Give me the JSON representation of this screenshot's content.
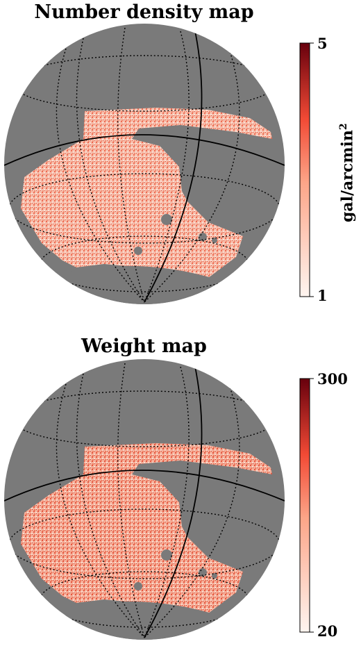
{
  "panels": [
    {
      "title": "Number density map",
      "colorbar": {
        "min_label": "5",
        "max_label": "1",
        "unit": "gal/arcmin",
        "unit_exp": "2"
      }
    },
    {
      "title": "Weight map",
      "colorbar": {
        "min_label": "300",
        "max_label": "20",
        "unit": "",
        "unit_exp": ""
      }
    }
  ],
  "colors": {
    "background_sphere": "#7a7a7a",
    "colormap_low": "#fff5f0",
    "colormap_mid": "#fb6a4a",
    "colormap_high": "#67000d"
  }
}
